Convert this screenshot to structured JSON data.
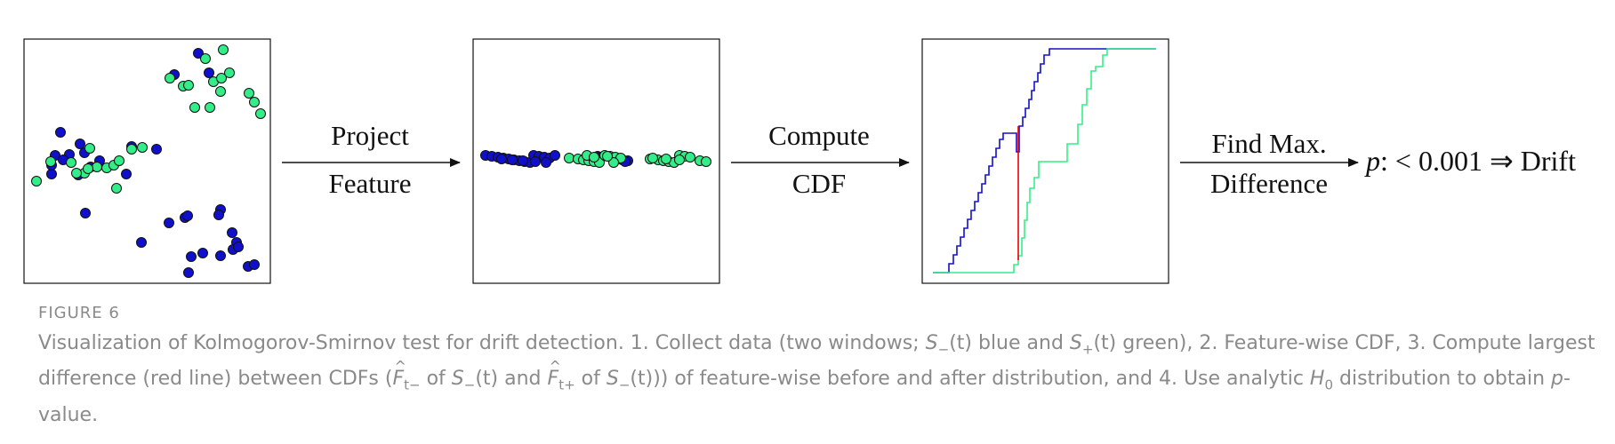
{
  "colors": {
    "before": "#1010cc",
    "after": "#33ee88",
    "difference": "#ee0000",
    "caption": "#8a8a8a",
    "arrow": "#111111"
  },
  "steps": {
    "project": {
      "line1": "Project",
      "line2": "Feature"
    },
    "compute": {
      "line1": "Compute",
      "line2": "CDF"
    },
    "find": {
      "line1": "Find Max.",
      "line2": "Difference"
    }
  },
  "result": {
    "p": "p",
    "rest": ": < 0.001 ⇒ Drift"
  },
  "caption": {
    "label": "FIGURE 6",
    "t1": "Visualization of Kolmogorov-Smirnov test for drift detection. 1. Collect data (two windows; ",
    "s": "S",
    "minus": "−",
    "plus": "+",
    "t_arg": "(t)",
    "t2": " blue and ",
    "t3": " green), 2. Feature-wise CDF, 3. Compute largest difference (red line) between CDFs (",
    "F": "F",
    "tminus": "t−",
    "tplus": "t+",
    "of": " of ",
    "and": " and ",
    "t4": ")) of feature-wise before and after distribution, and 4. Use analytic ",
    "H": "H",
    "zero": "0",
    "t5": " distribution to obtain ",
    "pvar": "p",
    "t6": "-value."
  },
  "chart_data": {
    "type": "scatter",
    "series": [
      {
        "name": "S−(t)",
        "color": "#1010cc"
      },
      {
        "name": "S+(t)",
        "color": "#33ee88"
      }
    ]
  }
}
